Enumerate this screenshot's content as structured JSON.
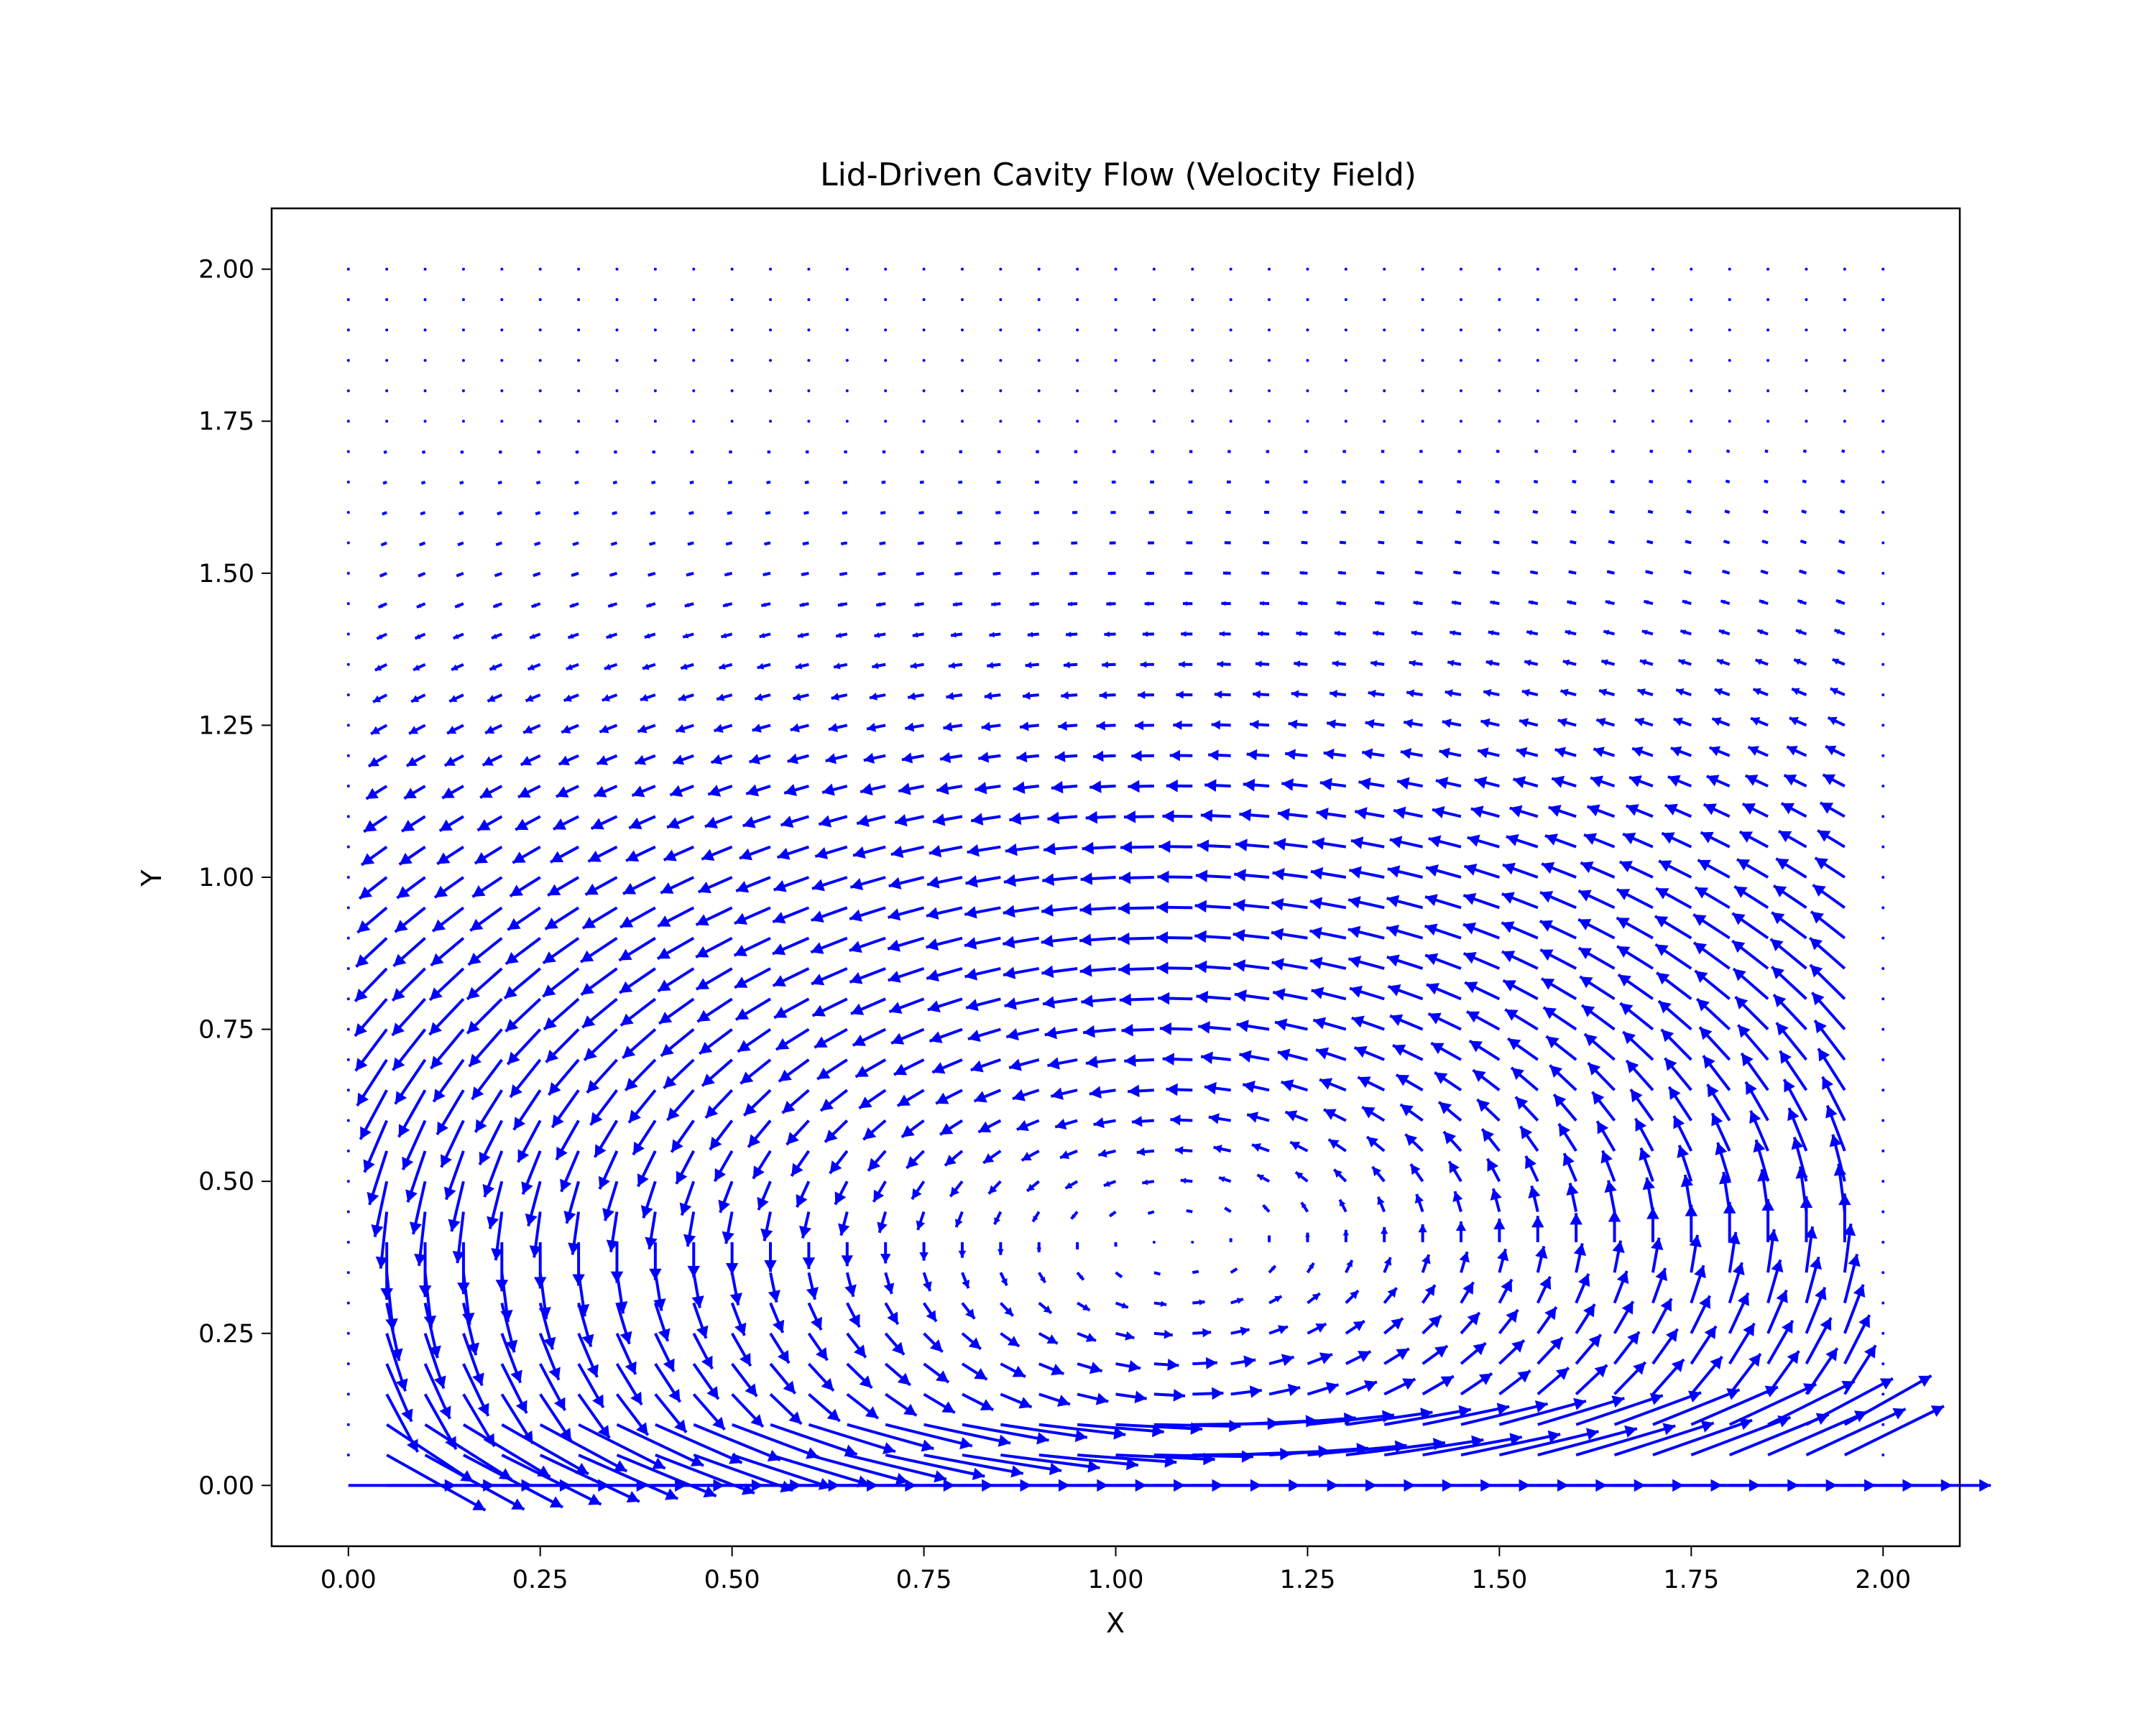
{
  "chart_data": {
    "type": "quiver",
    "title": "Lid-Driven Cavity Flow (Velocity Field)",
    "xlabel": "X",
    "ylabel": "Y",
    "xlim": [
      -0.1,
      2.1
    ],
    "ylim": [
      -0.1,
      2.1
    ],
    "xticks": [
      0.0,
      0.25,
      0.5,
      0.75,
      1.0,
      1.25,
      1.5,
      1.75,
      2.0
    ],
    "yticks": [
      0.0,
      0.25,
      0.5,
      0.75,
      1.0,
      1.25,
      1.5,
      1.75,
      2.0
    ],
    "xtick_labels": [
      "0.00",
      "0.25",
      "0.50",
      "0.75",
      "1.00",
      "1.25",
      "1.50",
      "1.75",
      "2.00"
    ],
    "ytick_labels": [
      "0.00",
      "0.25",
      "0.50",
      "0.75",
      "1.00",
      "1.25",
      "1.50",
      "1.75",
      "2.00"
    ],
    "grid": false,
    "arrow_color": "#0000ff",
    "field": {
      "x_range": [
        0.0,
        2.0
      ],
      "y_range": [
        0.0,
        2.0
      ],
      "nx": 41,
      "ny": 41,
      "lid_row": "y = 0.00",
      "lid_velocity": 1.0,
      "vortex_center": [
        1.08,
        0.4
      ]
    }
  }
}
